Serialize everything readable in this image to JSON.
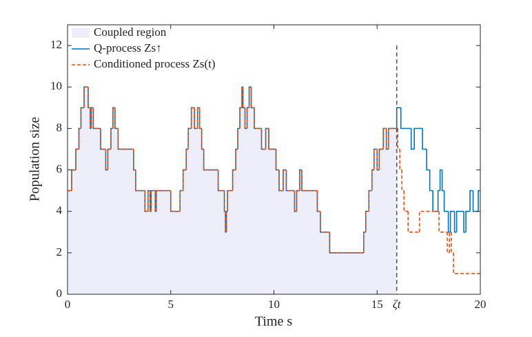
{
  "chart_data": {
    "type": "step",
    "xlabel": "Time s",
    "ylabel": "Population size",
    "xlim": [
      0,
      20
    ],
    "ylim": [
      0,
      13
    ],
    "xticks": [
      0,
      5,
      10,
      15,
      20
    ],
    "yticks": [
      0,
      2,
      4,
      6,
      8,
      10,
      12
    ],
    "zeta": {
      "value": 15.95,
      "label": "ζt"
    },
    "region": {
      "name": "Coupled region",
      "color": "#eeeefa"
    },
    "legend": "upper left",
    "series": [
      {
        "name": "Q-process Zs↑",
        "color": "#0072bd",
        "dash": false,
        "x": [
          0,
          0.2,
          0.4,
          0.55,
          0.65,
          0.8,
          1.0,
          1.1,
          1.15,
          1.25,
          1.6,
          1.85,
          1.95,
          2.1,
          2.2,
          2.3,
          2.45,
          3.2,
          3.3,
          3.75,
          3.9,
          4.0,
          4.05,
          4.25,
          4.3,
          5.0,
          5.45,
          5.6,
          5.75,
          5.85,
          6.0,
          6.15,
          6.3,
          6.4,
          6.5,
          6.6,
          7.3,
          7.6,
          7.65,
          7.7,
          7.75,
          8.0,
          8.15,
          8.25,
          8.35,
          8.45,
          8.5,
          8.6,
          8.7,
          8.8,
          8.9,
          9.05,
          9.4,
          9.6,
          9.75,
          10.1,
          10.25,
          10.45,
          10.6,
          11.0,
          11.1,
          11.25,
          11.35,
          12.1,
          12.25,
          12.7,
          14.35,
          14.45,
          14.6,
          14.75,
          14.85,
          15.0,
          15.1,
          15.3,
          15.45,
          15.55,
          15.95,
          16.15,
          16.65,
          16.8,
          17.2,
          17.4,
          17.55,
          17.7,
          17.95,
          18.05,
          18.15,
          18.25,
          18.45,
          18.55,
          18.75,
          18.85,
          19.2,
          19.3,
          19.5,
          19.65,
          19.9,
          20
        ],
        "values": [
          5,
          6,
          7,
          8,
          9,
          10,
          9,
          8,
          9,
          8,
          7,
          6,
          7,
          8,
          9,
          8,
          7,
          6,
          5,
          4,
          5,
          4,
          5,
          4,
          5,
          4,
          5,
          6,
          7,
          8,
          9,
          8,
          9,
          8,
          7,
          6,
          5,
          4,
          3,
          4,
          5,
          6,
          7,
          8,
          9,
          10,
          9,
          8,
          9,
          10,
          9,
          8,
          7,
          8,
          7,
          6,
          5,
          6,
          5,
          4,
          5,
          6,
          5,
          4,
          3,
          2,
          3,
          4,
          5,
          6,
          7,
          6,
          7,
          8,
          7,
          8,
          9,
          8,
          7,
          8,
          7,
          6,
          5,
          4,
          5,
          6,
          5,
          4,
          3,
          4,
          3,
          4,
          3,
          4,
          5,
          4,
          5,
          5
        ]
      },
      {
        "name": "Conditioned process Zs(t)",
        "color": "#d95319",
        "dash": true,
        "x": [
          0,
          0.2,
          0.4,
          0.55,
          0.65,
          0.8,
          1.0,
          1.1,
          1.15,
          1.25,
          1.6,
          1.85,
          1.95,
          2.1,
          2.2,
          2.3,
          2.45,
          3.2,
          3.3,
          3.75,
          3.9,
          4.0,
          4.05,
          4.25,
          4.3,
          5.0,
          5.45,
          5.6,
          5.75,
          5.85,
          6.0,
          6.15,
          6.3,
          6.4,
          6.5,
          6.6,
          7.3,
          7.6,
          7.65,
          7.7,
          7.75,
          8.0,
          8.15,
          8.25,
          8.35,
          8.45,
          8.5,
          8.6,
          8.7,
          8.8,
          8.9,
          9.05,
          9.4,
          9.6,
          9.75,
          10.1,
          10.25,
          10.45,
          10.6,
          11.0,
          11.1,
          11.25,
          11.35,
          12.1,
          12.25,
          12.7,
          14.35,
          14.45,
          14.6,
          14.75,
          14.85,
          15.0,
          15.1,
          15.3,
          15.45,
          15.55,
          16.0,
          16.1,
          16.2,
          16.3,
          16.5,
          17.05,
          18.0,
          18.4,
          18.5,
          18.6,
          18.7,
          20
        ],
        "values": [
          5,
          6,
          7,
          8,
          9,
          10,
          9,
          8,
          9,
          8,
          7,
          6,
          7,
          8,
          9,
          8,
          7,
          6,
          5,
          4,
          5,
          4,
          5,
          4,
          5,
          4,
          5,
          6,
          7,
          8,
          9,
          8,
          9,
          8,
          7,
          6,
          5,
          4,
          3,
          4,
          5,
          6,
          7,
          8,
          9,
          10,
          9,
          8,
          9,
          10,
          9,
          8,
          7,
          8,
          7,
          6,
          5,
          6,
          5,
          4,
          5,
          6,
          5,
          4,
          3,
          2,
          3,
          4,
          5,
          6,
          7,
          6,
          7,
          8,
          7,
          8,
          7,
          6,
          5,
          4,
          3,
          4,
          3,
          2,
          3,
          2,
          1,
          1
        ]
      }
    ]
  }
}
